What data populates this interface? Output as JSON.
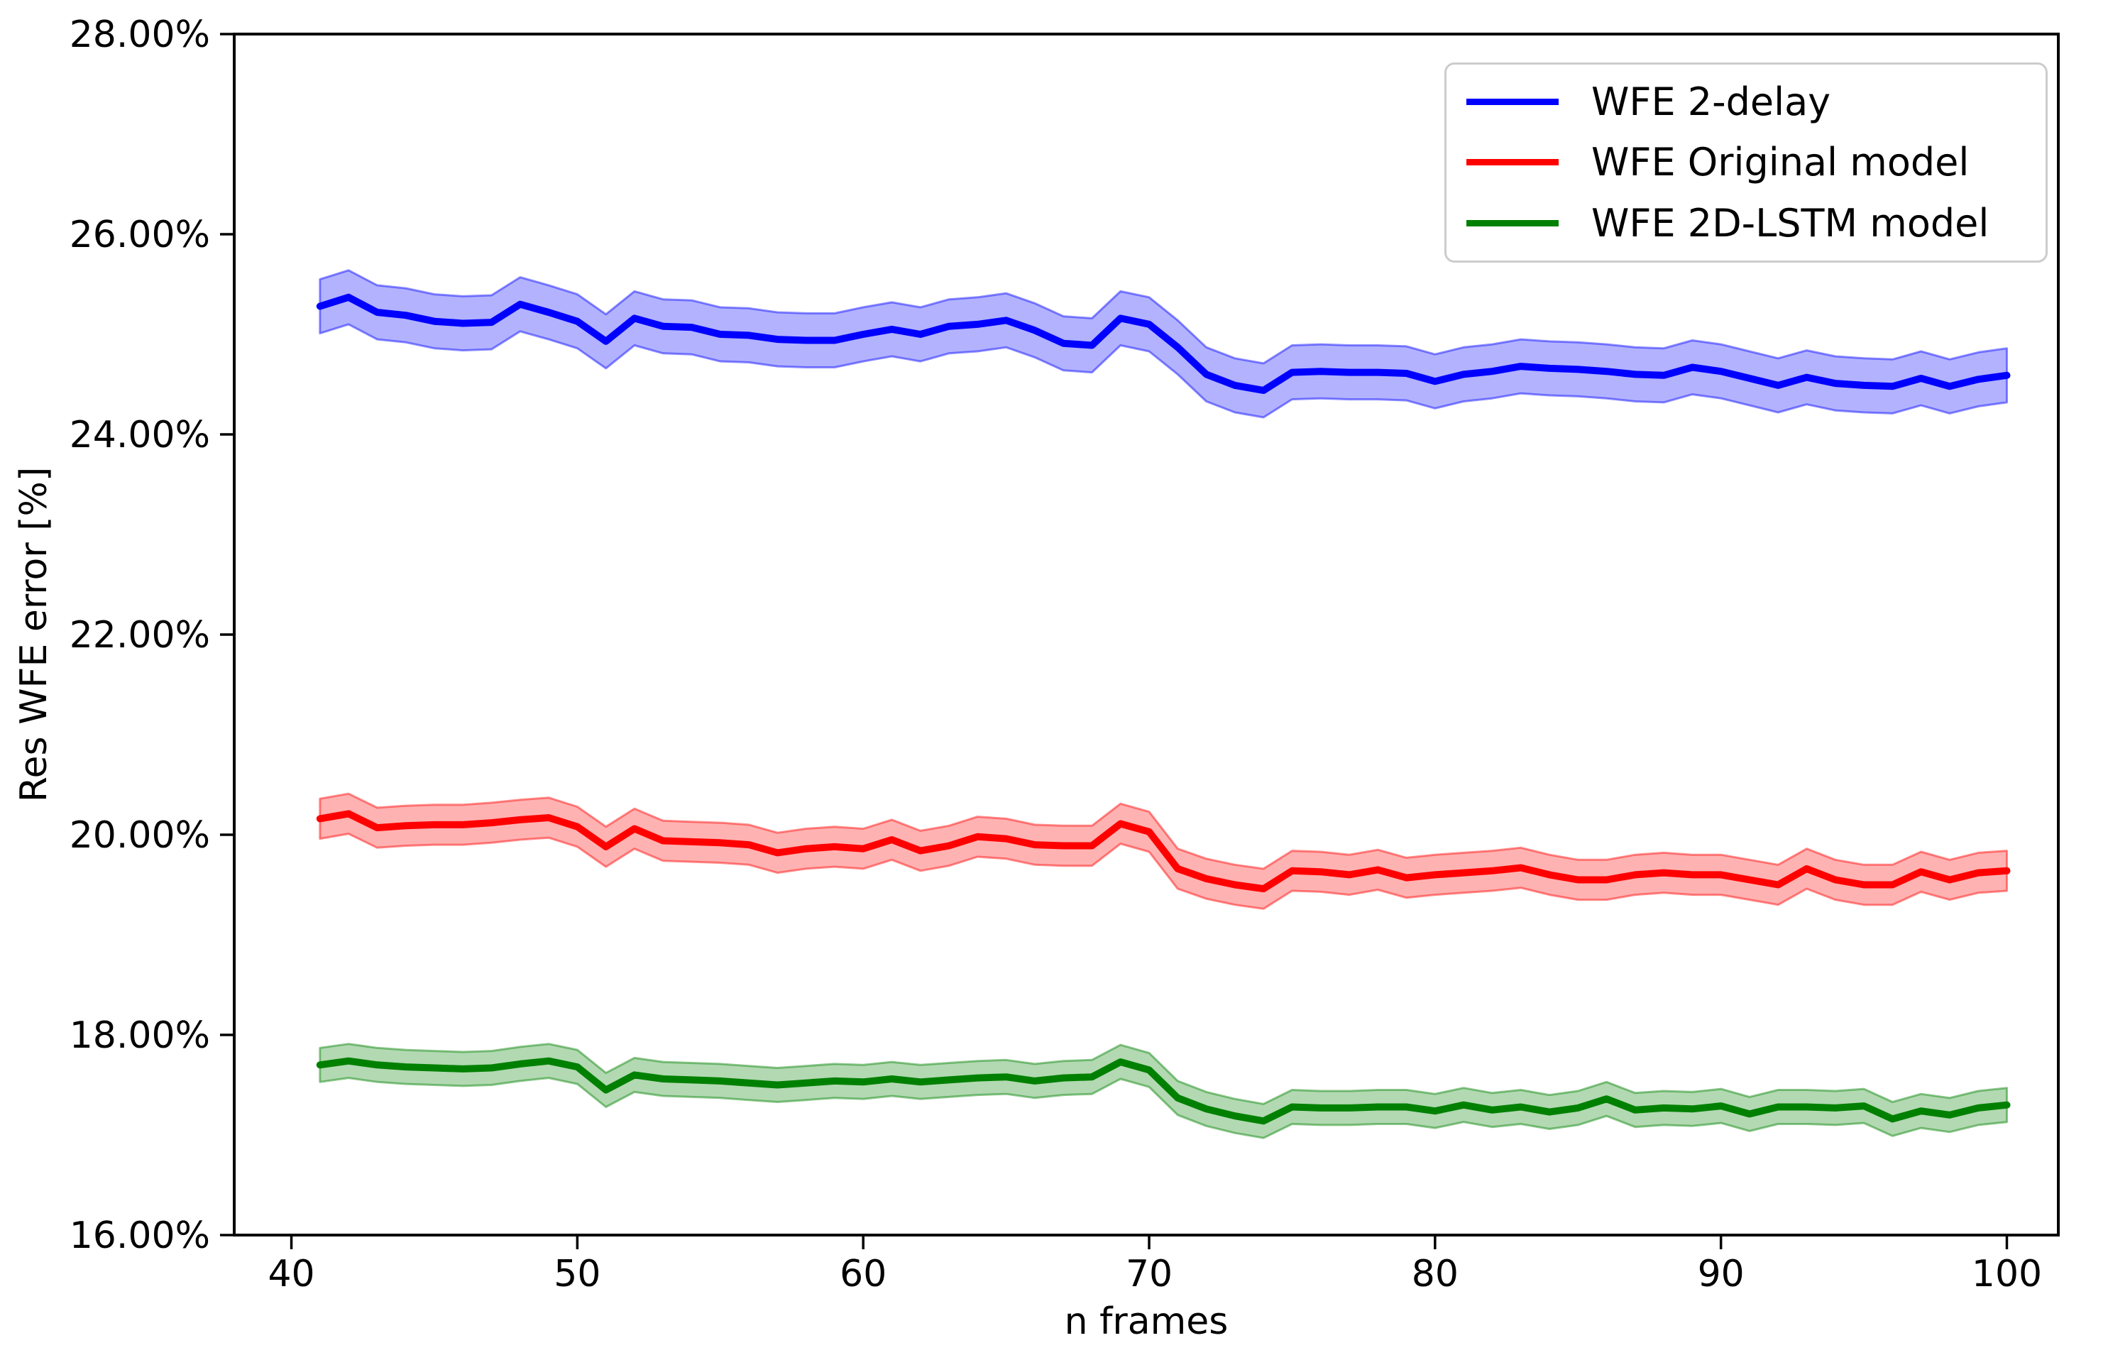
{
  "chart_data": {
    "type": "line",
    "title": "",
    "xlabel": "n frames",
    "ylabel": "Res WFE error [%]",
    "xlim": [
      38,
      101.8
    ],
    "ylim": [
      16,
      28
    ],
    "x_ticks": [
      40,
      50,
      60,
      70,
      80,
      90,
      100
    ],
    "y_ticks": [
      16,
      18,
      20,
      22,
      24,
      26,
      28
    ],
    "y_tick_labels": [
      "16.00%",
      "18.00%",
      "20.00%",
      "22.00%",
      "24.00%",
      "26.00%",
      "28.00%"
    ],
    "grid": false,
    "legend_position": "upper right",
    "background_color": "#ffffff",
    "axis_color": "#000000",
    "x": [
      41,
      42,
      43,
      44,
      45,
      46,
      47,
      48,
      49,
      50,
      51,
      52,
      53,
      54,
      55,
      56,
      57,
      58,
      59,
      60,
      61,
      62,
      63,
      64,
      65,
      66,
      67,
      68,
      69,
      70,
      71,
      72,
      73,
      74,
      75,
      76,
      77,
      78,
      79,
      80,
      81,
      82,
      83,
      84,
      85,
      86,
      87,
      88,
      89,
      90,
      91,
      92,
      93,
      94,
      95,
      96,
      97,
      98,
      99,
      100
    ],
    "series": [
      {
        "name": "WFE 2-delay",
        "color": "#0000ff",
        "band_halfwidth": 0.27,
        "values": [
          25.28,
          25.37,
          25.22,
          25.19,
          25.13,
          25.11,
          25.12,
          25.3,
          25.22,
          25.13,
          24.93,
          25.16,
          25.08,
          25.07,
          25.0,
          24.99,
          24.95,
          24.94,
          24.94,
          25.0,
          25.05,
          25.0,
          25.08,
          25.1,
          25.14,
          25.04,
          24.91,
          24.89,
          25.16,
          25.1,
          24.87,
          24.6,
          24.49,
          24.44,
          24.62,
          24.63,
          24.62,
          24.62,
          24.61,
          24.53,
          24.6,
          24.63,
          24.68,
          24.66,
          24.65,
          24.63,
          24.6,
          24.59,
          24.67,
          24.63,
          24.56,
          24.49,
          24.57,
          24.51,
          24.49,
          24.48,
          24.56,
          24.48,
          24.55,
          24.59
        ]
      },
      {
        "name": "WFE Original model",
        "color": "#ff0000",
        "band_halfwidth": 0.2,
        "values": [
          20.16,
          20.21,
          20.07,
          20.09,
          20.1,
          20.1,
          20.12,
          20.15,
          20.17,
          20.08,
          19.88,
          20.06,
          19.94,
          19.93,
          19.92,
          19.9,
          19.82,
          19.86,
          19.88,
          19.86,
          19.95,
          19.84,
          19.89,
          19.98,
          19.96,
          19.9,
          19.89,
          19.89,
          20.11,
          20.03,
          19.66,
          19.56,
          19.5,
          19.46,
          19.64,
          19.63,
          19.6,
          19.65,
          19.57,
          19.6,
          19.62,
          19.64,
          19.67,
          19.6,
          19.55,
          19.55,
          19.6,
          19.62,
          19.6,
          19.6,
          19.55,
          19.5,
          19.66,
          19.55,
          19.5,
          19.5,
          19.63,
          19.55,
          19.62,
          19.64
        ]
      },
      {
        "name": "WFE 2D-LSTM model",
        "color": "#008000",
        "band_halfwidth": 0.17,
        "values": [
          17.7,
          17.74,
          17.7,
          17.68,
          17.67,
          17.66,
          17.67,
          17.71,
          17.74,
          17.68,
          17.45,
          17.6,
          17.56,
          17.55,
          17.54,
          17.52,
          17.5,
          17.52,
          17.54,
          17.53,
          17.56,
          17.53,
          17.55,
          17.57,
          17.58,
          17.54,
          17.57,
          17.58,
          17.73,
          17.65,
          17.37,
          17.26,
          17.19,
          17.14,
          17.28,
          17.27,
          17.27,
          17.28,
          17.28,
          17.24,
          17.3,
          17.25,
          17.28,
          17.23,
          17.27,
          17.36,
          17.25,
          17.27,
          17.26,
          17.29,
          17.21,
          17.28,
          17.28,
          17.27,
          17.29,
          17.16,
          17.24,
          17.2,
          17.27,
          17.3
        ]
      }
    ]
  }
}
